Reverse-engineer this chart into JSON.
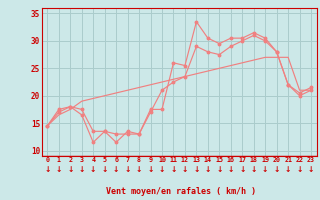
{
  "x": [
    0,
    1,
    2,
    3,
    4,
    5,
    6,
    7,
    8,
    9,
    10,
    11,
    12,
    13,
    14,
    15,
    16,
    17,
    18,
    19,
    20,
    21,
    22,
    23
  ],
  "line1": [
    14.5,
    17.5,
    18.0,
    16.5,
    11.5,
    13.5,
    11.5,
    13.5,
    13.0,
    17.5,
    17.5,
    26.0,
    25.5,
    33.5,
    30.5,
    29.5,
    30.5,
    30.5,
    31.5,
    30.5,
    28.0,
    22.0,
    20.5,
    21.5
  ],
  "line2": [
    14.5,
    17.0,
    18.0,
    17.5,
    13.5,
    13.5,
    13.0,
    13.0,
    13.0,
    17.0,
    21.0,
    22.5,
    23.5,
    29.0,
    28.0,
    27.5,
    29.0,
    30.0,
    31.0,
    30.0,
    28.0,
    22.0,
    20.0,
    21.0
  ],
  "line3": [
    14.5,
    16.5,
    17.5,
    19.0,
    19.5,
    20.0,
    20.5,
    21.0,
    21.5,
    22.0,
    22.5,
    23.0,
    23.5,
    24.0,
    24.5,
    25.0,
    25.5,
    26.0,
    26.5,
    27.0,
    27.0,
    27.0,
    21.0,
    21.0
  ],
  "line_color": "#f08080",
  "bg_color": "#cce8e8",
  "grid_color": "#aacccc",
  "axis_color": "#cc0000",
  "xlabel": "Vent moyen/en rafales ( km/h )",
  "ylim": [
    9,
    36
  ],
  "xlim": [
    -0.5,
    23.5
  ],
  "yticks": [
    10,
    15,
    20,
    25,
    30,
    35
  ],
  "xticks": [
    0,
    1,
    2,
    3,
    4,
    5,
    6,
    7,
    8,
    9,
    10,
    11,
    12,
    13,
    14,
    15,
    16,
    17,
    18,
    19,
    20,
    21,
    22,
    23
  ]
}
